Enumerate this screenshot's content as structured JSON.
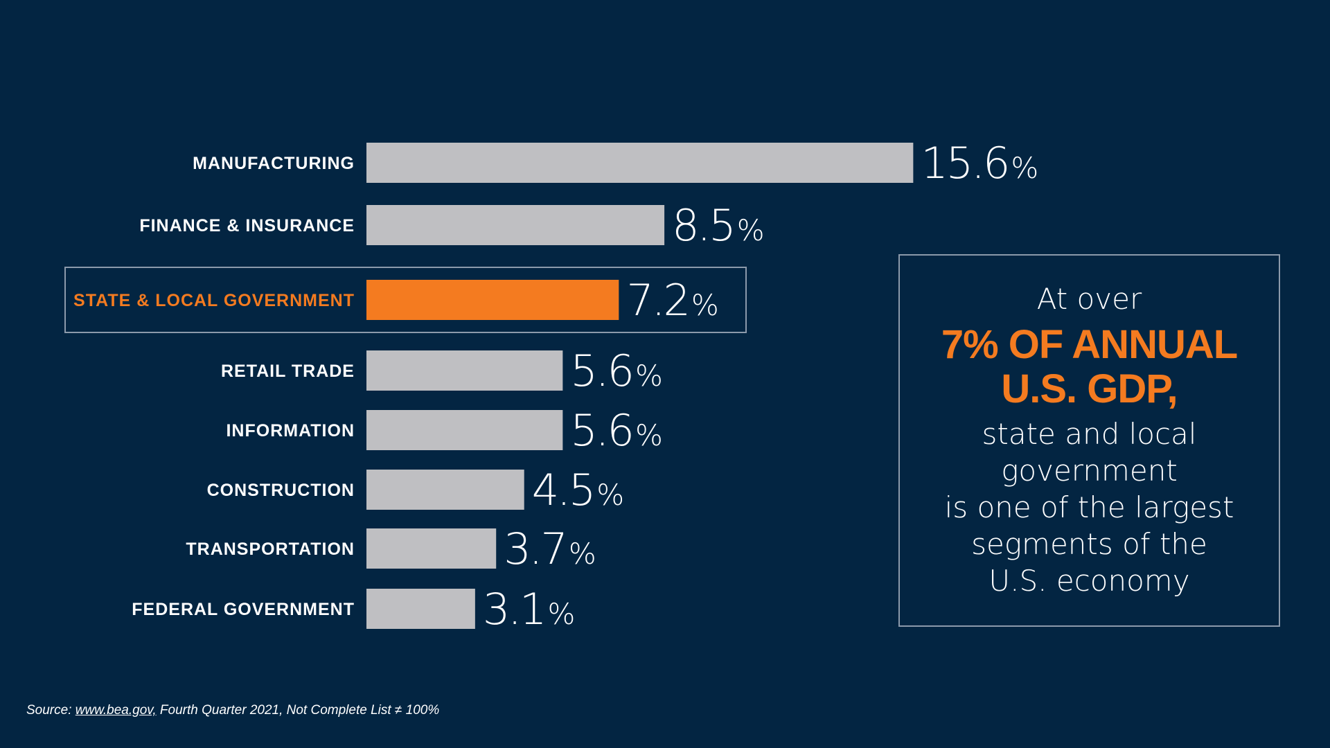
{
  "colors": {
    "background": "#032542",
    "bar": "#bfbfc2",
    "highlight": "#f47b20",
    "text": "#ffffff",
    "callout_border": "#8c9aab"
  },
  "chart_data": {
    "type": "bar",
    "orientation": "horizontal",
    "categories": [
      "MANUFACTURING",
      "FINANCE & INSURANCE",
      "STATE & LOCAL GOVERNMENT",
      "RETAIL TRADE",
      "INFORMATION",
      "CONSTRUCTION",
      "TRANSPORTATION",
      "FEDERAL GOVERNMENT"
    ],
    "values": [
      15.6,
      8.5,
      7.2,
      5.6,
      5.6,
      4.5,
      3.7,
      3.1
    ],
    "value_labels": [
      "15.6",
      "8.5",
      "7.2",
      "5.6",
      "5.6",
      "4.5",
      "3.7",
      "3.1"
    ],
    "value_suffix": "%",
    "highlight_category": "STATE & LOCAL GOVERNMENT",
    "grid": false,
    "axes_visible": false
  },
  "callout": {
    "lead": "At over",
    "emphasis_line1": "7% OF ANNUAL",
    "emphasis_line2": "U.S. GDP,",
    "body_lines": [
      "state and local",
      "government",
      "is one of the largest",
      "segments of the",
      "U.S. economy"
    ]
  },
  "source": {
    "prefix": "Source: ",
    "link": "www.bea.gov,",
    "suffix": " Fourth Quarter 2021, Not Complete List ≠ 100%"
  }
}
